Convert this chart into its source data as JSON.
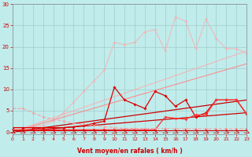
{
  "background_color": "#c0ecec",
  "grid_color": "#a0cccc",
  "xlabel": "Vent moyen/en rafales ( km/h )",
  "xlim": [
    0,
    23
  ],
  "ylim": [
    -0.5,
    30
  ],
  "yticks": [
    0,
    5,
    10,
    15,
    20,
    25,
    30
  ],
  "xticks": [
    0,
    1,
    2,
    3,
    4,
    5,
    6,
    7,
    8,
    9,
    10,
    11,
    12,
    13,
    14,
    15,
    16,
    17,
    18,
    19,
    20,
    21,
    22,
    23
  ],
  "series": [
    {
      "x": [
        0,
        23
      ],
      "y": [
        0.0,
        4.5
      ],
      "color": "#cc0000",
      "lw": 0.9,
      "marker": null,
      "alpha": 1.0,
      "linestyle": "-"
    },
    {
      "x": [
        0,
        23
      ],
      "y": [
        0.0,
        7.5
      ],
      "color": "#cc0000",
      "lw": 0.9,
      "marker": null,
      "alpha": 1.0,
      "linestyle": "-"
    },
    {
      "x": [
        0,
        23
      ],
      "y": [
        0.0,
        16.0
      ],
      "color": "#ff8888",
      "lw": 0.9,
      "marker": null,
      "alpha": 0.85,
      "linestyle": "-"
    },
    {
      "x": [
        0,
        23
      ],
      "y": [
        0.0,
        19.0
      ],
      "color": "#ffaaaa",
      "lw": 0.9,
      "marker": null,
      "alpha": 0.75,
      "linestyle": "-"
    },
    {
      "x": [
        0,
        1,
        2,
        3,
        4,
        5,
        6,
        7,
        8,
        9,
        10,
        11,
        12,
        13,
        14,
        15,
        16,
        17,
        18,
        19,
        20,
        21,
        22,
        23
      ],
      "y": [
        1.0,
        1.0,
        1.2,
        1.5,
        2.5,
        4.5,
        7.0,
        9.5,
        12.0,
        14.5,
        21.0,
        20.5,
        21.0,
        23.5,
        24.0,
        19.0,
        27.0,
        26.0,
        19.5,
        26.5,
        22.0,
        19.5,
        19.5,
        18.5
      ],
      "color": "#ffaaaa",
      "lw": 0.8,
      "marker": "D",
      "ms": 1.8,
      "alpha": 0.75,
      "linestyle": "-"
    },
    {
      "x": [
        0,
        1,
        2,
        3,
        4,
        5,
        6,
        7,
        8,
        9,
        10,
        11,
        12,
        13,
        14,
        15,
        16,
        17,
        18,
        19,
        20,
        21,
        22,
        23
      ],
      "y": [
        1.0,
        1.0,
        1.0,
        1.0,
        1.0,
        1.0,
        1.2,
        1.5,
        2.0,
        2.5,
        10.5,
        7.5,
        6.5,
        5.5,
        9.5,
        8.5,
        6.0,
        7.5,
        3.5,
        4.5,
        7.5,
        7.5,
        7.5,
        4.2
      ],
      "color": "#dd0000",
      "lw": 0.9,
      "marker": "D",
      "ms": 2.0,
      "alpha": 1.0,
      "linestyle": "-"
    },
    {
      "x": [
        0,
        1,
        2,
        3,
        4,
        5,
        6,
        7,
        8,
        9,
        10,
        11,
        12,
        13,
        14,
        15,
        16,
        17,
        18,
        19,
        20,
        21,
        22,
        23
      ],
      "y": [
        0.5,
        0.5,
        0.5,
        0.5,
        0.5,
        0.5,
        0.5,
        0.5,
        0.5,
        0.5,
        0.5,
        0.5,
        0.5,
        0.5,
        0.5,
        3.5,
        3.2,
        3.0,
        4.0,
        4.0,
        7.5,
        7.5,
        7.5,
        4.2
      ],
      "color": "#ff3333",
      "lw": 0.9,
      "marker": "D",
      "ms": 1.8,
      "alpha": 1.0,
      "linestyle": "-"
    },
    {
      "x": [
        0,
        1,
        2,
        3,
        4,
        5,
        6,
        7,
        8,
        9,
        10,
        11,
        12,
        13,
        14,
        15,
        16,
        17,
        18,
        19,
        20,
        21,
        22,
        23
      ],
      "y": [
        0.3,
        0.3,
        0.3,
        0.3,
        0.3,
        0.3,
        0.3,
        0.3,
        0.3,
        0.3,
        0.3,
        0.3,
        0.3,
        0.3,
        0.3,
        0.3,
        0.3,
        0.3,
        0.3,
        0.3,
        0.3,
        0.3,
        0.3,
        0.3
      ],
      "color": "#cc0000",
      "lw": 0.8,
      "marker": "D",
      "ms": 1.5,
      "alpha": 1.0,
      "linestyle": "-"
    },
    {
      "x": [
        0,
        1,
        2,
        3,
        4,
        5,
        6,
        7,
        8,
        9,
        10,
        11,
        12,
        13,
        14,
        15,
        16,
        17,
        18,
        19,
        20,
        21,
        22,
        23
      ],
      "y": [
        5.5,
        5.5,
        4.5,
        3.5,
        3.0,
        2.5,
        2.0,
        1.8,
        1.5,
        1.2,
        1.0,
        0.8,
        0.8,
        0.8,
        0.8,
        0.8,
        0.7,
        0.7,
        0.7,
        0.7,
        0.7,
        0.7,
        0.7,
        0.7
      ],
      "color": "#ff9999",
      "lw": 0.9,
      "marker": "D",
      "ms": 1.8,
      "alpha": 0.8,
      "linestyle": "--"
    }
  ],
  "arrows": {
    "x": [
      0,
      1,
      2,
      3,
      4,
      5,
      6,
      7,
      8,
      9,
      10,
      11,
      12,
      13,
      14,
      15,
      16,
      17,
      18,
      19,
      20,
      21,
      22,
      23
    ],
    "color": "#cc0000",
    "angles": [
      270,
      225,
      225,
      225,
      225,
      225,
      270,
      270,
      270,
      270,
      0,
      0,
      0,
      0,
      0,
      0,
      0,
      45,
      45,
      45,
      45,
      45,
      45,
      45
    ]
  }
}
